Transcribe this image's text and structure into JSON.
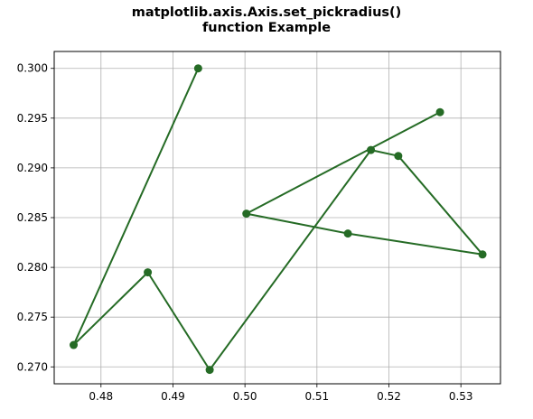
{
  "chart_data": {
    "type": "line",
    "title_lines": [
      "matplotlib.axis.Axis.set_pickradius()",
      "function Example"
    ],
    "xlabel": "",
    "ylabel": "",
    "xlim": [
      0.4735,
      0.5355
    ],
    "ylim": [
      0.2683,
      0.3017
    ],
    "x_ticks": [
      0.48,
      0.49,
      0.5,
      0.51,
      0.52,
      0.53
    ],
    "x_tick_labels": [
      "0.48",
      "0.49",
      "0.50",
      "0.51",
      "0.52",
      "0.53"
    ],
    "y_ticks": [
      0.27,
      0.275,
      0.28,
      0.285,
      0.29,
      0.295,
      0.3
    ],
    "y_tick_labels": [
      "0.270",
      "0.275",
      "0.280",
      "0.285",
      "0.290",
      "0.295",
      "0.300"
    ],
    "grid": true,
    "line_color": "#256b25",
    "grid_color": "#b0b0b0",
    "series": [
      {
        "x": [
          0.4935,
          0.4762,
          0.4865,
          0.4951,
          0.5175,
          0.5213,
          0.533,
          0.5143,
          0.5002,
          0.5271
        ],
        "y": [
          0.3,
          0.2722,
          0.2795,
          0.2697,
          0.2918,
          0.2912,
          0.2813,
          0.2834,
          0.2854,
          0.2956
        ]
      }
    ]
  }
}
